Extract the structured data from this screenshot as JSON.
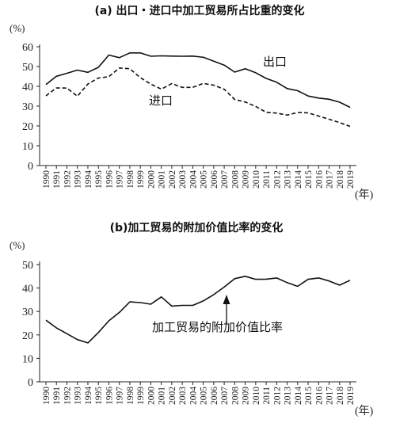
{
  "chart_data": [
    {
      "type": "line",
      "title": "(a) 出口・进口中加工贸易所占比重的变化",
      "ylabel": "(%)",
      "xunit": "(年)",
      "ylim": [
        0,
        60
      ],
      "yticks": [
        0,
        10,
        20,
        30,
        40,
        50,
        60
      ],
      "categories": [
        "1990",
        "1991",
        "1992",
        "1993",
        "1994",
        "1995",
        "1996",
        "1997",
        "1998",
        "1999",
        "2000",
        "2001",
        "2002",
        "2003",
        "2004",
        "2005",
        "2006",
        "2007",
        "2008",
        "2009",
        "2010",
        "2011",
        "2012",
        "2013",
        "2014",
        "2015",
        "2016",
        "2017",
        "2018",
        "2019"
      ],
      "series": [
        {
          "name": "出口",
          "style": "solid",
          "values": [
            40.9,
            45.1,
            46.6,
            48.2,
            47.1,
            49.6,
            55.8,
            54.5,
            56.9,
            56.9,
            55.2,
            55.4,
            55.3,
            55.2,
            55.3,
            54.7,
            52.7,
            50.7,
            47.2,
            48.9,
            46.9,
            44.0,
            42.1,
            38.9,
            37.8,
            35.1,
            34.1,
            33.5,
            32.0,
            29.4
          ]
        },
        {
          "name": "进口",
          "style": "dashed",
          "values": [
            35.2,
            39.2,
            39.1,
            35.0,
            41.2,
            44.2,
            44.9,
            49.3,
            48.9,
            44.4,
            41.1,
            38.6,
            41.4,
            39.5,
            39.5,
            41.5,
            40.6,
            38.5,
            33.4,
            32.1,
            29.9,
            26.9,
            26.5,
            25.5,
            26.8,
            26.6,
            25.0,
            23.4,
            21.7,
            19.8
          ]
        }
      ]
    },
    {
      "type": "line",
      "title": "(b)加工贸易的附加价值比率的变化",
      "ylabel": "(%)",
      "xunit": "(年)",
      "ylim": [
        0,
        50
      ],
      "yticks": [
        0,
        10,
        20,
        30,
        40,
        50
      ],
      "categories": [
        "1990",
        "1991",
        "1992",
        "1993",
        "1994",
        "1995",
        "1996",
        "1997",
        "1998",
        "1999",
        "2000",
        "2001",
        "2002",
        "2003",
        "2004",
        "2005",
        "2006",
        "2007",
        "2008",
        "2009",
        "2010",
        "2011",
        "2012",
        "2013",
        "2014",
        "2015",
        "2016",
        "2017",
        "2018",
        "2019"
      ],
      "series": [
        {
          "name": "加工贸易的附加价值比率",
          "style": "solid",
          "values": [
            26.3,
            23.0,
            20.5,
            18.0,
            16.6,
            21.0,
            26.0,
            29.6,
            34.1,
            33.8,
            33.1,
            36.2,
            32.3,
            32.6,
            32.6,
            34.5,
            37.2,
            40.4,
            44.0,
            45.0,
            43.7,
            43.8,
            44.3,
            42.3,
            40.7,
            43.7,
            44.3,
            43.0,
            41.2,
            43.3
          ]
        }
      ]
    }
  ]
}
